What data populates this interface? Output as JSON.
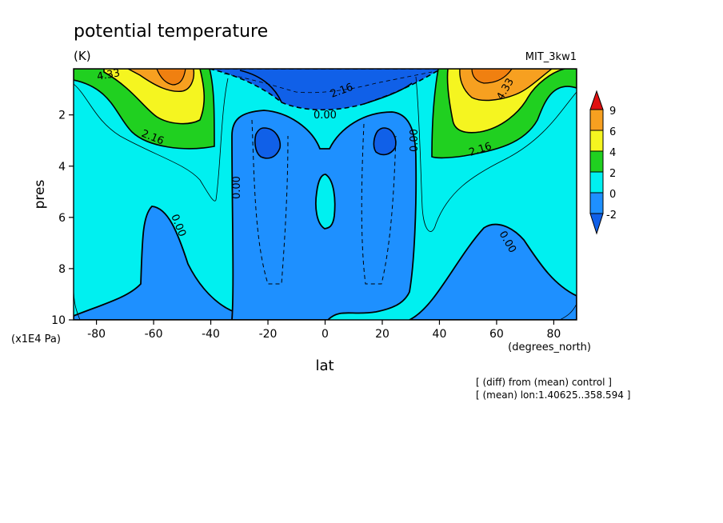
{
  "chart_data": {
    "type": "contour",
    "title": "potential temperature",
    "units": "(K)",
    "experiment": "MIT_3kw1",
    "xlabel": "lat",
    "xunits": "(degrees_north)",
    "ylabel": "pres",
    "yunits": "(x1E4 Pa)",
    "xlim": [
      -88,
      88
    ],
    "ylim": [
      10,
      0.2
    ],
    "xticks": [
      "-80",
      "-60",
      "-40",
      "-20",
      "0",
      "20",
      "40",
      "60",
      "80"
    ],
    "xtick_values": [
      -80,
      -60,
      -40,
      -20,
      0,
      20,
      40,
      60,
      80
    ],
    "yticks": [
      "2",
      "4",
      "6",
      "8",
      "10"
    ],
    "ytick_values": [
      2,
      4,
      6,
      8,
      10
    ],
    "contour_labels": [
      "4.33",
      "2.16",
      "2.16",
      "0.00",
      "0.00",
      "0.00",
      "0.00",
      "0.00",
      "2.16",
      "4.33",
      "0.00"
    ],
    "colorbar": {
      "levels": [
        "9",
        "6",
        "4",
        "2",
        "0",
        "-2"
      ],
      "colors": [
        "#e01010",
        "#f7a020",
        "#f5f520",
        "#20d020",
        "#00f0f0",
        "#1e90ff",
        "#1060e8"
      ]
    },
    "notes": [
      "[ (diff) from (mean) control ]",
      "[ (mean) lon:1.40625..358.594 ]"
    ]
  }
}
